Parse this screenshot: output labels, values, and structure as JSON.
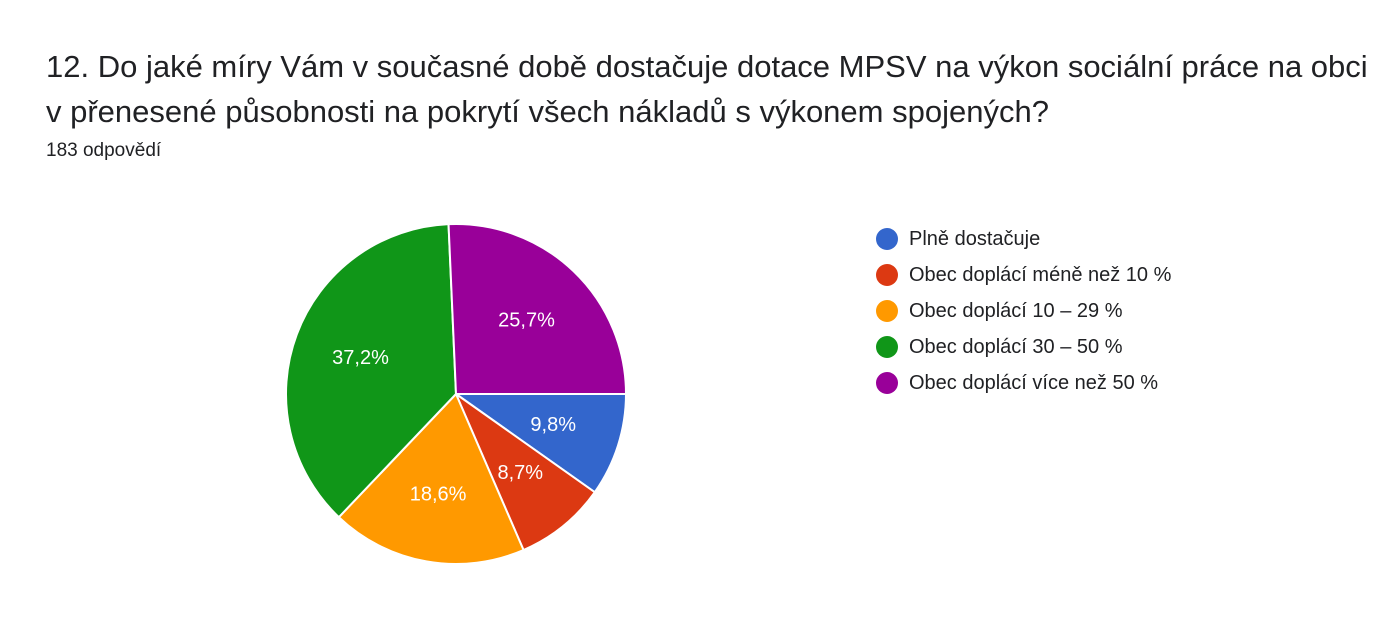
{
  "header": {
    "title_line1": "12. Do jaké míry Vám v současné době dostačuje dotace MPSV na výkon sociální práce na obci",
    "title_line2": "v přenesené působnosti na pokrytí všech nákladů s výkonem spojených?",
    "responses": "183 odpovědí"
  },
  "chart_data": {
    "type": "pie",
    "slices": [
      {
        "label": "Plně dostačuje",
        "value": 9.8,
        "display": "9,8%",
        "color": "#3366cc"
      },
      {
        "label": "Obec doplácí méně než 10 %",
        "value": 8.7,
        "display": "8,7%",
        "color": "#dc3912"
      },
      {
        "label": "Obec doplácí 10 – 29 %",
        "value": 18.6,
        "display": "18,6%",
        "color": "#ff9900"
      },
      {
        "label": "Obec doplácí 30 – 50 %",
        "value": 37.2,
        "display": "37,2%",
        "color": "#109618"
      },
      {
        "label": "Obec doplácí více než 50 %",
        "value": 25.7,
        "display": "25,7%",
        "color": "#990099"
      }
    ],
    "legend_position": "right"
  }
}
